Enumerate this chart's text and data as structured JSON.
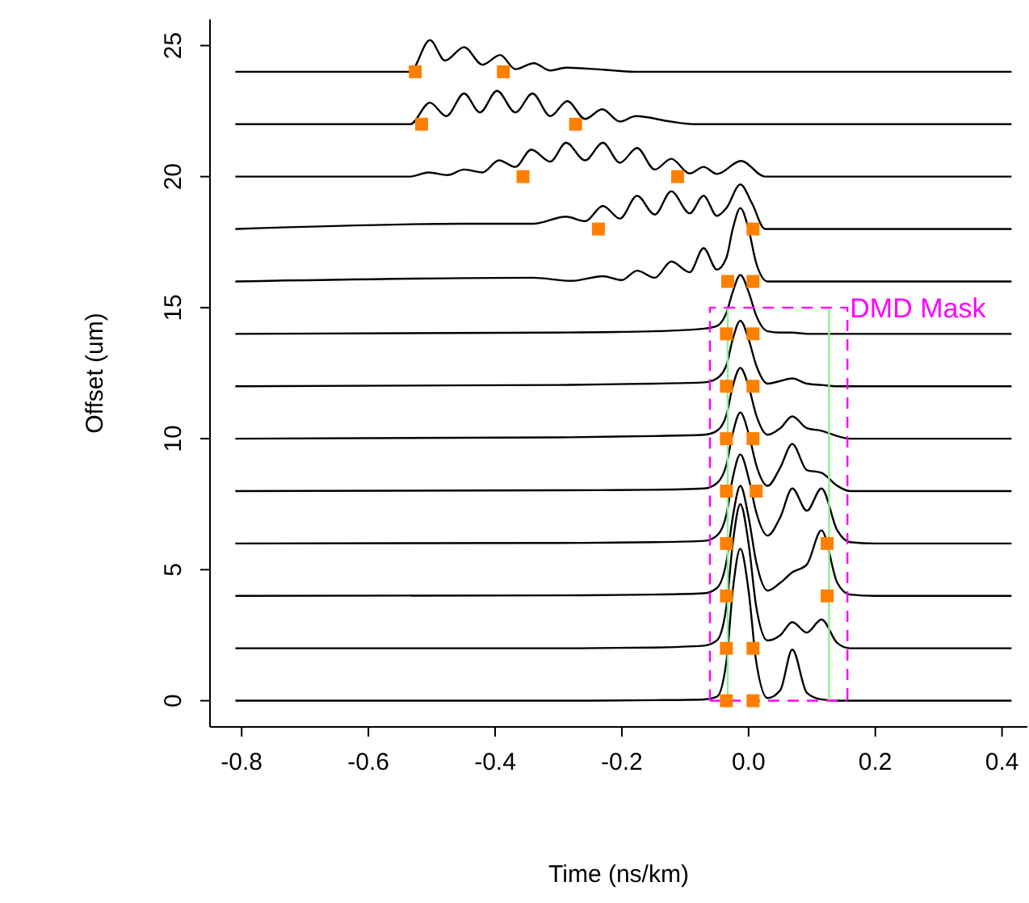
{
  "chart_data": {
    "type": "line",
    "xlabel": "Time (ns/km)",
    "ylabel": "Offset (um)",
    "xlim": [
      -0.85,
      0.44
    ],
    "ylim": [
      -1,
      26
    ],
    "xticks": [
      -0.8,
      -0.6,
      -0.4,
      -0.2,
      {
        "value": 0,
        "label": "0.0"
      },
      0.2,
      0.4
    ],
    "yticks": [
      0,
      5,
      10,
      15,
      20,
      25
    ],
    "grid": false,
    "legend": false,
    "marker": "none",
    "line_style": "solid",
    "annotations": [
      {
        "text": "DMD Mask",
        "x": 0.16,
        "y": 15
      }
    ],
    "series": [
      {
        "color": "#000000",
        "x": [
          -0.81,
          -0.3,
          -0.15,
          -0.07,
          -0.05,
          -0.035,
          -0.025,
          -0.013,
          0,
          0.012,
          0.03,
          0.05,
          0.069,
          0.092,
          0.115,
          0.14,
          0.16,
          0.2,
          0.415
        ],
        "values": [
          0,
          0,
          0.02,
          0.05,
          0.15,
          1.5,
          4.2,
          5.8,
          4.2,
          1.5,
          0.1,
          0.4,
          1.95,
          0.3,
          0.05,
          0,
          0,
          0,
          0
        ]
      },
      {
        "color": "#000000",
        "x": [
          -0.81,
          -0.3,
          -0.15,
          -0.07,
          -0.05,
          -0.035,
          -0.025,
          -0.013,
          0,
          0.012,
          0.03,
          0.05,
          0.069,
          0.092,
          0.115,
          0.14,
          0.16,
          0.2,
          0.415
        ],
        "values": [
          2,
          2,
          2.03,
          2.1,
          2.3,
          3.6,
          6,
          7.5,
          6,
          3.6,
          2.3,
          2.5,
          3,
          2.6,
          3.1,
          2.2,
          2,
          2,
          2
        ]
      },
      {
        "color": "#000000",
        "x": [
          -0.81,
          -0.3,
          -0.15,
          -0.07,
          -0.05,
          -0.035,
          -0.025,
          -0.013,
          0,
          0.012,
          0.03,
          0.05,
          0.069,
          0.092,
          0.115,
          0.14,
          0.16,
          0.2,
          0.415
        ],
        "values": [
          4,
          4.02,
          4.05,
          4.1,
          4.3,
          5.3,
          7,
          8.2,
          7,
          5.3,
          4.2,
          4.5,
          4.9,
          5.2,
          6.5,
          4.5,
          4.05,
          4,
          4
        ]
      },
      {
        "color": "#000000",
        "x": [
          -0.81,
          -0.3,
          -0.15,
          -0.07,
          -0.05,
          -0.035,
          -0.025,
          -0.013,
          0,
          0.012,
          0.03,
          0.05,
          0.069,
          0.092,
          0.115,
          0.14,
          0.16,
          0.2,
          0.415
        ],
        "values": [
          6,
          6.02,
          6.05,
          6.1,
          6.3,
          7.1,
          8.5,
          9.4,
          8.5,
          7.2,
          6.3,
          7,
          8.1,
          7.25,
          8.1,
          6.5,
          6.05,
          6,
          6
        ]
      },
      {
        "color": "#000000",
        "x": [
          -0.81,
          -0.3,
          -0.15,
          -0.07,
          -0.05,
          -0.035,
          -0.025,
          -0.013,
          0,
          0.012,
          0.03,
          0.05,
          0.069,
          0.092,
          0.115,
          0.14,
          0.16,
          0.2,
          0.415
        ],
        "values": [
          8,
          8.03,
          8.05,
          8.1,
          8.3,
          9,
          10.2,
          11,
          10.2,
          9,
          8.2,
          8.9,
          9.8,
          8.8,
          8.7,
          8.2,
          8,
          8,
          8
        ]
      },
      {
        "color": "#000000",
        "x": [
          -0.81,
          -0.3,
          -0.15,
          -0.07,
          -0.05,
          -0.035,
          -0.025,
          -0.013,
          0,
          0.012,
          0.03,
          0.05,
          0.069,
          0.092,
          0.115,
          0.14,
          0.16,
          0.2,
          0.415
        ],
        "values": [
          10,
          10.05,
          10.1,
          10.15,
          10.3,
          10.9,
          12,
          12.7,
          12,
          10.9,
          10.15,
          10.4,
          10.85,
          10.4,
          10.3,
          10.1,
          10,
          10,
          10
        ]
      },
      {
        "color": "#000000",
        "x": [
          -0.81,
          -0.3,
          -0.15,
          -0.07,
          -0.05,
          -0.035,
          -0.025,
          -0.013,
          0,
          0.012,
          0.03,
          0.05,
          0.069,
          0.092,
          0.115,
          0.14,
          0.16,
          0.2,
          0.415
        ],
        "values": [
          12,
          12.05,
          12.1,
          12.15,
          12.3,
          12.8,
          13.8,
          14.5,
          13.8,
          12.8,
          12.1,
          12.2,
          12.3,
          12.1,
          12.05,
          12,
          12,
          12,
          12
        ]
      },
      {
        "color": "#000000",
        "x": [
          -0.81,
          -0.3,
          -0.15,
          -0.07,
          -0.05,
          -0.035,
          -0.025,
          -0.013,
          0,
          0.012,
          0.03,
          0.05,
          0.069,
          0.092,
          0.115,
          0.14,
          0.16,
          0.2,
          0.415
        ],
        "values": [
          14,
          14.05,
          14.1,
          14.2,
          14.3,
          14.8,
          15.6,
          16.25,
          15.6,
          14.7,
          14.1,
          14.05,
          14.05,
          14,
          14,
          14,
          14,
          14,
          14
        ]
      },
      {
        "color": "#000000",
        "x": [
          -0.81,
          -0.34,
          -0.28,
          -0.23,
          -0.2,
          -0.176,
          -0.148,
          -0.122,
          -0.093,
          -0.071,
          -0.05,
          -0.035,
          -0.025,
          -0.013,
          0,
          0.012,
          0.03,
          0.415
        ],
        "values": [
          16,
          16.14,
          16.02,
          16.2,
          16.05,
          16.41,
          16.14,
          16.76,
          16.35,
          17.27,
          16.45,
          16.9,
          18,
          18.8,
          18,
          16.7,
          16,
          16
        ]
      },
      {
        "color": "#000000",
        "x": [
          -0.81,
          -0.45,
          -0.34,
          -0.288,
          -0.258,
          -0.23,
          -0.203,
          -0.176,
          -0.148,
          -0.122,
          -0.093,
          -0.071,
          -0.05,
          -0.035,
          -0.013,
          0.005,
          0.026,
          0.415
        ],
        "values": [
          18,
          18.2,
          18.2,
          18.47,
          18.3,
          18.88,
          18.4,
          19.27,
          18.55,
          19.44,
          18.6,
          19.27,
          18.5,
          18.8,
          19.7,
          19,
          18,
          18
        ]
      },
      {
        "color": "#000000",
        "x": [
          -0.81,
          -0.535,
          -0.505,
          -0.475,
          -0.449,
          -0.42,
          -0.394,
          -0.368,
          -0.343,
          -0.313,
          -0.288,
          -0.258,
          -0.23,
          -0.203,
          -0.176,
          -0.148,
          -0.122,
          -0.093,
          -0.071,
          -0.05,
          -0.012,
          0.026,
          0.415
        ],
        "values": [
          20,
          20,
          20.16,
          20.06,
          20.27,
          20.16,
          20.62,
          20.37,
          21.03,
          20.57,
          21.29,
          20.62,
          21.29,
          20.53,
          21.09,
          20.27,
          20.68,
          20.12,
          20.37,
          20.1,
          20.6,
          20,
          20
        ]
      },
      {
        "color": "#000000",
        "x": [
          -0.81,
          -0.534,
          -0.503,
          -0.477,
          -0.449,
          -0.424,
          -0.397,
          -0.368,
          -0.341,
          -0.313,
          -0.286,
          -0.258,
          -0.231,
          -0.203,
          -0.178,
          -0.123,
          -0.085,
          0.415
        ],
        "values": [
          22,
          22,
          22.82,
          22.31,
          23.17,
          22.45,
          23.27,
          22.45,
          23.17,
          22.31,
          22.88,
          22.2,
          22.57,
          22.1,
          22.31,
          22.1,
          22,
          22
        ]
      },
      {
        "color": "#000000",
        "x": [
          -0.81,
          -0.534,
          -0.503,
          -0.479,
          -0.449,
          -0.42,
          -0.392,
          -0.368,
          -0.339,
          -0.313,
          -0.288,
          -0.229,
          -0.18,
          0.415
        ],
        "values": [
          24,
          24,
          25.21,
          24.43,
          24.94,
          24.27,
          24.64,
          24.1,
          24.33,
          24.05,
          24.16,
          24.08,
          24,
          24
        ]
      },
      {
        "type": "line",
        "color": "#90ee90",
        "x": [
          -0.033,
          -0.033
        ],
        "values": [
          0,
          15
        ]
      },
      {
        "type": "line",
        "color": "#90ee90",
        "x": [
          0.127,
          0.127
        ],
        "values": [
          0,
          15
        ]
      },
      {
        "type": "line",
        "color": "#ff00ff",
        "line_style": "dashed",
        "x": [
          -0.061,
          -0.061,
          0.156,
          0.156
        ],
        "values": [
          0,
          15,
          15,
          0
        ]
      },
      {
        "type": "line",
        "color": "#ff00ff",
        "line_style": "dashed",
        "x": [
          -0.061,
          0.156
        ],
        "values": [
          0,
          0
        ]
      },
      {
        "type": "scatter",
        "color": "#ff8000",
        "marker": "square",
        "x": [
          -0.526,
          -0.387,
          -0.516,
          -0.273,
          -0.356,
          -0.112,
          -0.237,
          0.007,
          -0.033,
          0.007,
          -0.035,
          0.007,
          -0.035,
          0.007,
          -0.035,
          0.007,
          -0.035,
          0.012,
          -0.035,
          0.124,
          -0.035,
          0.124,
          -0.035,
          0.007,
          -0.035,
          0.007
        ],
        "values": [
          24,
          24,
          22,
          22,
          20,
          20,
          18,
          18,
          16,
          16,
          14,
          14,
          12,
          12,
          10,
          10,
          8,
          8,
          6,
          6,
          4,
          4,
          2,
          2,
          0,
          0
        ]
      }
    ]
  }
}
